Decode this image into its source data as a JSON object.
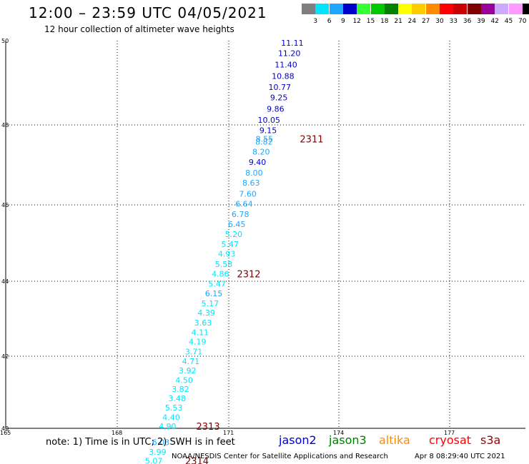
{
  "header": {
    "title": "12:00 – 23:59 UTC 04/05/2021",
    "subtitle": "12 hour collection of altimeter wave heights"
  },
  "scale": {
    "unit": "(ft)",
    "items": [
      {
        "label": "3",
        "color": "#7f7f7f"
      },
      {
        "label": "6",
        "color": "#00e5ff"
      },
      {
        "label": "9",
        "color": "#1fa6ff"
      },
      {
        "label": "12",
        "color": "#0000cc"
      },
      {
        "label": "15",
        "color": "#33ff33"
      },
      {
        "label": "18",
        "color": "#00c800"
      },
      {
        "label": "21",
        "color": "#007f00"
      },
      {
        "label": "24",
        "color": "#ffff00"
      },
      {
        "label": "27",
        "color": "#ffcc00"
      },
      {
        "label": "30",
        "color": "#ff8c00"
      },
      {
        "label": "33",
        "color": "#ff0000"
      },
      {
        "label": "36",
        "color": "#cc0000"
      },
      {
        "label": "39",
        "color": "#7f0000"
      },
      {
        "label": "42",
        "color": "#990099"
      },
      {
        "label": "45",
        "color": "#ccaaff"
      },
      {
        "label": "70",
        "color": "#ff99ff"
      },
      {
        "label": "",
        "color": "#000000"
      }
    ]
  },
  "map": {
    "lat_min": 40,
    "lat_max": 50,
    "lon_min": 165,
    "lon_max": 178,
    "lat_labels": [
      "50",
      "48",
      "46",
      "44",
      "42",
      "40"
    ],
    "lon_labels": [
      "165",
      "168",
      "171",
      "174",
      "177"
    ]
  },
  "observations": [
    {
      "value": "11.11",
      "lat": 49.95,
      "lon": 173.05,
      "color": "#0000cc"
    },
    {
      "value": "11.20",
      "lat": 49.7,
      "lon": 172.97,
      "color": "#0000cc"
    },
    {
      "value": "11.40",
      "lat": 49.43,
      "lon": 172.88,
      "color": "#0000cc"
    },
    {
      "value": "10.88",
      "lat": 49.16,
      "lon": 172.8,
      "color": "#0000cc"
    },
    {
      "value": "10.77",
      "lat": 48.9,
      "lon": 172.71,
      "color": "#0000cc"
    },
    {
      "value": "9.25",
      "lat": 48.65,
      "lon": 172.62,
      "color": "#0000cc"
    },
    {
      "value": "9.86",
      "lat": 48.38,
      "lon": 172.53,
      "color": "#0000cc"
    },
    {
      "value": "10.05",
      "lat": 48.12,
      "lon": 172.42,
      "color": "#0000cc"
    },
    {
      "value": "9.15",
      "lat": 47.87,
      "lon": 172.33,
      "color": "#0000cc"
    },
    {
      "value": "8.55",
      "lat": 47.65,
      "lon": 172.23,
      "color": "#1fa6ff"
    },
    {
      "value": "8.82",
      "lat": 47.58,
      "lon": 172.22,
      "color": "#1fa6ff"
    },
    {
      "value": "8.20",
      "lat": 47.33,
      "lon": 172.14,
      "color": "#1fa6ff"
    },
    {
      "value": "9.40",
      "lat": 47.07,
      "lon": 172.04,
      "color": "#0000cc"
    },
    {
      "value": "8.00",
      "lat": 46.8,
      "lon": 171.95,
      "color": "#1fa6ff"
    },
    {
      "value": "8.63",
      "lat": 46.55,
      "lon": 171.87,
      "color": "#1fa6ff"
    },
    {
      "value": "7.60",
      "lat": 46.28,
      "lon": 171.78,
      "color": "#1fa6ff"
    },
    {
      "value": "6.64",
      "lat": 46.03,
      "lon": 171.68,
      "color": "#1fa6ff"
    },
    {
      "value": "6.78",
      "lat": 45.76,
      "lon": 171.58,
      "color": "#1fa6ff"
    },
    {
      "value": "6.45",
      "lat": 45.5,
      "lon": 171.48,
      "color": "#1fa6ff"
    },
    {
      "value": "5.20",
      "lat": 45.23,
      "lon": 171.4,
      "color": "#00e5ff"
    },
    {
      "value": "5.47",
      "lat": 44.97,
      "lon": 171.3,
      "color": "#00e5ff"
    },
    {
      "value": "4.93",
      "lat": 44.72,
      "lon": 171.21,
      "color": "#00e5ff"
    },
    {
      "value": "5.58",
      "lat": 44.45,
      "lon": 171.13,
      "color": "#00e5ff"
    },
    {
      "value": "4.86",
      "lat": 44.2,
      "lon": 171.04,
      "color": "#00e5ff"
    },
    {
      "value": "5.47",
      "lat": 43.93,
      "lon": 170.95,
      "color": "#00e5ff"
    },
    {
      "value": "6.15",
      "lat": 43.68,
      "lon": 170.86,
      "color": "#1fa6ff"
    },
    {
      "value": "5.17",
      "lat": 43.41,
      "lon": 170.76,
      "color": "#00e5ff"
    },
    {
      "value": "4.39",
      "lat": 43.16,
      "lon": 170.66,
      "color": "#00e5ff"
    },
    {
      "value": "3.63",
      "lat": 42.9,
      "lon": 170.57,
      "color": "#00e5ff"
    },
    {
      "value": "4.11",
      "lat": 42.64,
      "lon": 170.49,
      "color": "#00e5ff"
    },
    {
      "value": "4.19",
      "lat": 42.39,
      "lon": 170.42,
      "color": "#00e5ff"
    },
    {
      "value": "3.71",
      "lat": 42.12,
      "lon": 170.32,
      "color": "#00e5ff"
    },
    {
      "value": "4.71",
      "lat": 41.86,
      "lon": 170.24,
      "color": "#00e5ff"
    },
    {
      "value": "3.92",
      "lat": 41.6,
      "lon": 170.15,
      "color": "#00e5ff"
    },
    {
      "value": "4.50",
      "lat": 41.34,
      "lon": 170.06,
      "color": "#00e5ff"
    },
    {
      "value": "3.82",
      "lat": 41.09,
      "lon": 169.96,
      "color": "#00e5ff"
    },
    {
      "value": "3.48",
      "lat": 40.83,
      "lon": 169.87,
      "color": "#00e5ff"
    },
    {
      "value": "5.53",
      "lat": 40.57,
      "lon": 169.78,
      "color": "#00e5ff"
    },
    {
      "value": "4.40",
      "lat": 40.31,
      "lon": 169.71,
      "color": "#00e5ff"
    },
    {
      "value": "4.90",
      "lat": 40.06,
      "lon": 169.61,
      "color": "#00e5ff"
    },
    {
      "value": "6.03",
      "lat": 39.61,
      "lon": 169.43,
      "color": "#1fa6ff"
    },
    {
      "value": "3.99",
      "lat": 39.35,
      "lon": 169.34,
      "color": "#00e5ff"
    },
    {
      "value": "5.07",
      "lat": 39.1,
      "lon": 169.24,
      "color": "#00e5ff"
    }
  ],
  "time_markers": [
    {
      "label": "2311",
      "lat": 47.65,
      "lon": 172.95,
      "color": "#7f0000"
    },
    {
      "label": "2312",
      "lat": 44.2,
      "lon": 171.25,
      "color": "#7f0000"
    },
    {
      "label": "2313",
      "lat": 40.06,
      "lon": 170.15,
      "color": "#7f0000"
    },
    {
      "label": "2314",
      "lat": 39.1,
      "lon": 169.85,
      "color": "#7f0000"
    }
  ],
  "footer": {
    "note": "note: 1) Time is in UTC; 2) SWH is in feet",
    "credit": "NOAA/NESDIS Center for Satellite Applications and Research",
    "timestamp": "Apr  8 08:29:40 UTC 2021",
    "satellites": [
      {
        "name": "jason2",
        "color": "#0000cc"
      },
      {
        "name": "jason3",
        "color": "#007f00"
      },
      {
        "name": "altika",
        "color": "#ff8c00"
      },
      {
        "name": "cryosat",
        "color": "#ff0000"
      },
      {
        "name": "s3a",
        "color": "#990000"
      }
    ]
  }
}
